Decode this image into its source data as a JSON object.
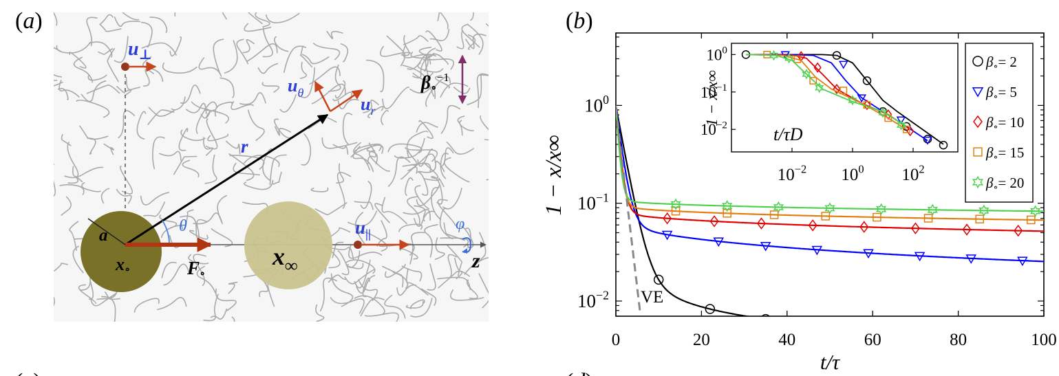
{
  "panel_a": {
    "letter_prefix": "(",
    "letter": "a",
    "letter_suffix": ")",
    "labels": {
      "u_perp": "u",
      "u_perp_sub": "⊥",
      "u_theta": "u",
      "u_theta_sub": "θ",
      "u_r": "u",
      "u_r_sub": "r",
      "beta_inv": "β",
      "beta_inv_sub": "∘",
      "beta_inv_sup": "−1",
      "r": "r",
      "theta": "θ",
      "a": "a",
      "x0": "x",
      "x0_sub": "∘",
      "F0": "F",
      "F0_sub": "∘",
      "xinf": "x",
      "xinf_sub": "∞",
      "u_par": "u",
      "u_par_sub": "||",
      "phi": "φ",
      "z": "z"
    },
    "colors": {
      "sphere_origin": "#7a7128",
      "sphere_final": "#c9c38e",
      "arrow_red": "#c6431c",
      "label_blue": "#2c3fd6",
      "dot_brown": "#93381e",
      "beta_purple": "#7f2e63"
    }
  },
  "panel_b": {
    "letter_prefix": "(",
    "letter": "b",
    "letter_suffix": ")",
    "annotation": "VE",
    "chart_data": [
      {
        "type": "line",
        "scale": "semilogy",
        "xlabel": "t/τ",
        "ylabel": "1 − x/x∞",
        "xlim": [
          0,
          100
        ],
        "ylim": [
          0.007,
          5.5
        ],
        "xticks": [
          0,
          20,
          40,
          60,
          80,
          100
        ],
        "xtick_labels": [
          "0",
          "20",
          "40",
          "60",
          "80",
          "100"
        ],
        "ytick_labels": [
          {
            "base": "10",
            "exp": "0"
          },
          {
            "base": "10",
            "exp": "−1"
          },
          {
            "base": "10",
            "exp": "−2"
          }
        ],
        "ytick_values": [
          1,
          0.1,
          0.01
        ],
        "series": [
          {
            "name": "β∘ = 2",
            "label_base": "β",
            "label_sub": "∘",
            "label_rest": "= 2",
            "color": "#000000",
            "marker": "circle",
            "curve": {
              "inf": 0.0045,
              "a1": 0.0395,
              "k1": 0.5,
              "a2": 0.956,
              "k2": 0.55
            },
            "markers_x": [
              10,
              22,
              35,
              47,
              59,
              71,
              83,
              95
            ]
          },
          {
            "name": "β∘ = 5",
            "label_base": "β",
            "label_sub": "∘",
            "label_rest": "= 5",
            "color": "#0000ff",
            "marker": "triangle",
            "curve": {
              "inf": 0.012,
              "a1": 0.06,
              "k1": 0.15,
              "a2": 0.928,
              "k2": 0.8
            },
            "markers_x": [
              12,
              24,
              35,
              47,
              59,
              71,
              83,
              95
            ]
          },
          {
            "name": "β∘ = 10",
            "label_base": "β",
            "label_sub": "∘",
            "label_rest": "= 10",
            "color": "#e00000",
            "marker": "diamond",
            "curve": {
              "inf": 0.029,
              "a1": 0.056,
              "k1": 0.09,
              "a2": 0.915,
              "k2": 1.2
            },
            "markers_x": [
              12,
              23,
              34,
              46,
              58,
              70,
              82,
              94
            ]
          },
          {
            "name": "β∘ = 15",
            "label_base": "β",
            "label_sub": "∘",
            "label_rest": "= 15",
            "color": "#e07f10",
            "marker": "square",
            "curve": {
              "inf": 0.043,
              "a1": 0.054,
              "k1": 0.08,
              "a2": 0.903,
              "k2": 1.4
            },
            "markers_x": [
              14,
              26,
              37,
              49,
              61,
              73,
              85,
              97
            ]
          },
          {
            "name": "β∘ = 20",
            "label_base": "β",
            "label_sub": "∘",
            "label_rest": "= 20",
            "color": "#50d050",
            "marker": "star",
            "curve": {
              "inf": 0.056,
              "a1": 0.054,
              "k1": 0.07,
              "a2": 0.89,
              "k2": 1.6
            },
            "markers_x": [
              14,
              26,
              38,
              50,
              62,
              74,
              86,
              98
            ]
          }
        ],
        "reference": {
          "name": "VE",
          "style": "dashed",
          "color": "#888888",
          "curve": {
            "a": 0.95,
            "k": 0.85
          }
        }
      },
      {
        "type": "line",
        "scale": "loglog",
        "inset": true,
        "xlabel": "t/τD",
        "ylabel": "1 − x/x∞",
        "xtick_labels": [
          {
            "base": "10",
            "exp": "−2"
          },
          {
            "base": "10",
            "exp": "0"
          },
          {
            "base": "10",
            "exp": "2"
          }
        ],
        "xtick_values": [
          0.01,
          1,
          100
        ],
        "ytick_labels": [
          {
            "base": "10",
            "exp": "0"
          },
          {
            "base": "10",
            "exp": "−1"
          },
          {
            "base": "10",
            "exp": "−2"
          }
        ],
        "ytick_values": [
          1,
          0.1,
          0.01
        ],
        "xlim": [
          0.0001,
          3000
        ],
        "ylim": [
          0.0025,
          2.0
        ],
        "series": [
          {
            "name": "β∘ = 2",
            "color": "#000000",
            "marker": "circle",
            "points": [
              [
                0.0003,
                1.0
              ],
              [
                0.01,
                1.0
              ],
              [
                0.1,
                1.0
              ],
              [
                0.3,
                0.95
              ],
              [
                1,
                0.6
              ],
              [
                3,
                0.2
              ],
              [
                10,
                0.06
              ],
              [
                30,
                0.03
              ],
              [
                100,
                0.015
              ],
              [
                300,
                0.008
              ],
              [
                1000,
                0.004
              ]
            ],
            "markers": [
              [
                0.0003,
                1.0
              ],
              [
                0.3,
                0.95
              ],
              [
                3,
                0.2
              ],
              [
                10,
                0.03
              ],
              [
                60,
                0.012
              ],
              [
                300,
                0.0055
              ],
              [
                1000,
                0.0038
              ]
            ]
          },
          {
            "name": "β∘ = 5",
            "color": "#0000ff",
            "marker": "triangle",
            "points": [
              [
                0.0003,
                1.0
              ],
              [
                0.01,
                1.0
              ],
              [
                0.05,
                0.95
              ],
              [
                0.2,
                0.6
              ],
              [
                0.6,
                0.2
              ],
              [
                2,
                0.07
              ],
              [
                10,
                0.03
              ],
              [
                60,
                0.012
              ],
              [
                300,
                0.005
              ]
            ],
            "markers": [
              [
                0.006,
                1.0
              ],
              [
                0.5,
                0.55
              ],
              [
                2,
                0.07
              ],
              [
                40,
                0.018
              ],
              [
                300,
                0.0052
              ]
            ]
          },
          {
            "name": "β∘ = 10",
            "color": "#e00000",
            "marker": "diamond",
            "points": [
              [
                0.0003,
                1.0
              ],
              [
                0.01,
                0.97
              ],
              [
                0.03,
                0.8
              ],
              [
                0.1,
                0.3
              ],
              [
                0.3,
                0.12
              ],
              [
                2,
                0.05
              ],
              [
                15,
                0.025
              ],
              [
                80,
                0.01
              ]
            ],
            "markers": [
              [
                0.02,
                0.9
              ],
              [
                0.07,
                0.45
              ],
              [
                0.3,
                0.12
              ],
              [
                3,
                0.045
              ],
              [
                15,
                0.025
              ],
              [
                80,
                0.009
              ]
            ]
          },
          {
            "name": "β∘ = 15",
            "color": "#e07f10",
            "marker": "square",
            "points": [
              [
                0.0003,
                1.0
              ],
              [
                0.005,
                0.95
              ],
              [
                0.02,
                0.7
              ],
              [
                0.06,
                0.25
              ],
              [
                0.2,
                0.12
              ],
              [
                2,
                0.05
              ],
              [
                15,
                0.02
              ],
              [
                60,
                0.01
              ]
            ],
            "markers": [
              [
                0.0015,
                1.0
              ],
              [
                0.015,
                0.75
              ],
              [
                0.05,
                0.2
              ],
              [
                0.5,
                0.11
              ],
              [
                3,
                0.045
              ],
              [
                15,
                0.02
              ],
              [
                60,
                0.01
              ]
            ]
          },
          {
            "name": "β∘ = 20",
            "color": "#50d050",
            "marker": "star",
            "points": [
              [
                0.0003,
                1.0
              ],
              [
                0.003,
                0.95
              ],
              [
                0.01,
                0.7
              ],
              [
                0.03,
                0.3
              ],
              [
                0.1,
                0.12
              ],
              [
                1,
                0.055
              ],
              [
                10,
                0.03
              ],
              [
                60,
                0.012
              ]
            ],
            "markers": [
              [
                0.0025,
                0.95
              ],
              [
                0.008,
                0.8
              ],
              [
                0.03,
                0.3
              ],
              [
                0.08,
                0.13
              ],
              [
                1,
                0.06
              ],
              [
                10,
                0.028
              ],
              [
                40,
                0.013
              ]
            ]
          }
        ]
      }
    ]
  },
  "panel_c": {
    "letter_prefix": "(",
    "letter": "c",
    "letter_suffix": ")"
  },
  "panel_d": {
    "letter_prefix": "(",
    "letter": "d",
    "letter_suffix": ")"
  }
}
